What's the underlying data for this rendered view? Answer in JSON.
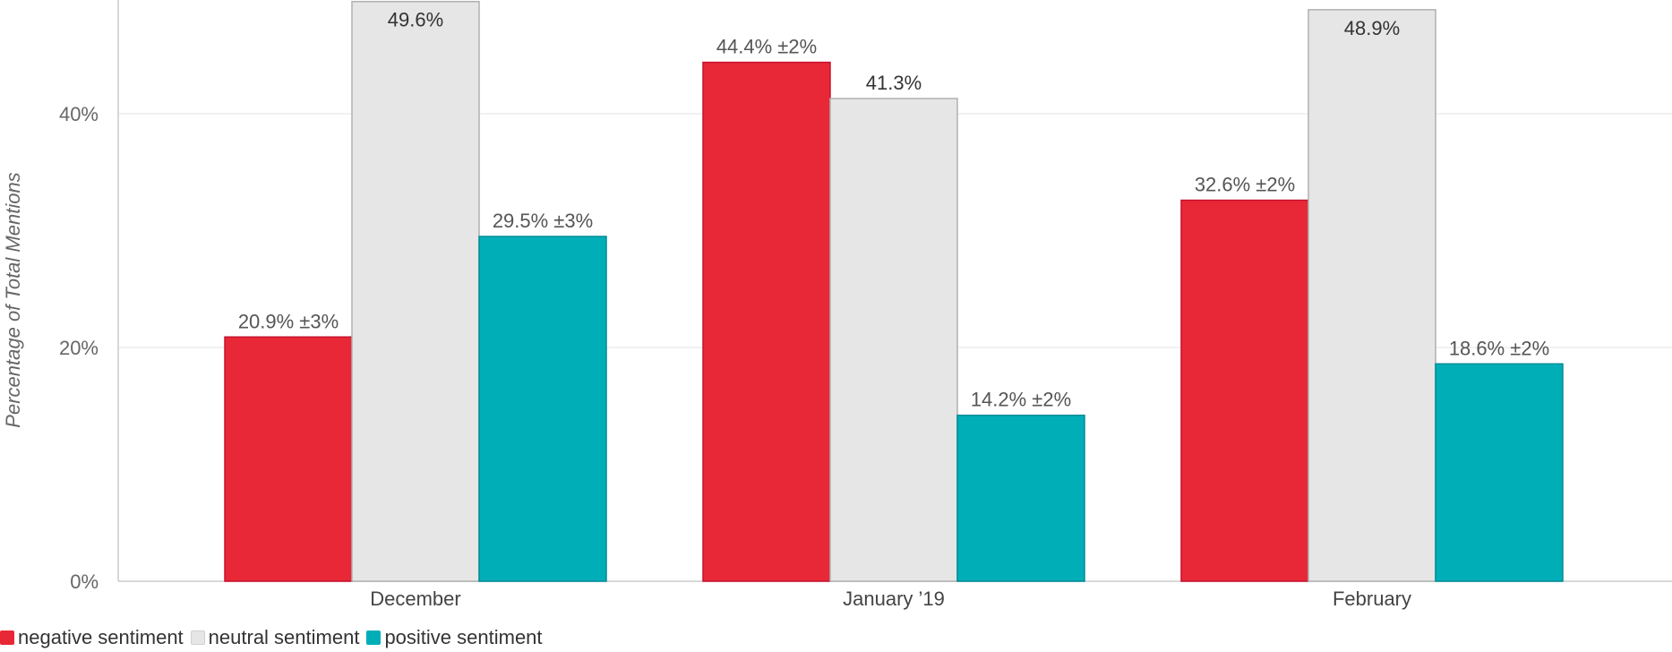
{
  "chart_data": {
    "type": "bar",
    "ylabel": "Percentage of Total Mentions",
    "xlabel": "",
    "ylim": [
      0,
      50
    ],
    "yticks": [
      0,
      20,
      40
    ],
    "ytick_labels": [
      "0%",
      "20%",
      "40%"
    ],
    "grid": true,
    "legend_position": "bottom-left",
    "categories": [
      "December",
      "January ’19",
      "February"
    ],
    "series": [
      {
        "name": "negative sentiment",
        "color": "#e82836",
        "values": [
          20.9,
          44.4,
          32.6
        ],
        "labels": [
          "20.9% ±3%",
          "44.4% ±2%",
          "32.6% ±2%"
        ]
      },
      {
        "name": "neutral sentiment",
        "color": "#e6e6e6",
        "values": [
          49.6,
          41.3,
          48.9
        ],
        "labels": [
          "49.6%",
          "41.3%",
          "48.9%"
        ]
      },
      {
        "name": "positive sentiment",
        "color": "#00aeb8",
        "values": [
          29.5,
          14.2,
          18.6
        ],
        "labels": [
          "29.5% ±3%",
          "14.2% ±2%",
          "18.6% ±2%"
        ]
      }
    ]
  }
}
